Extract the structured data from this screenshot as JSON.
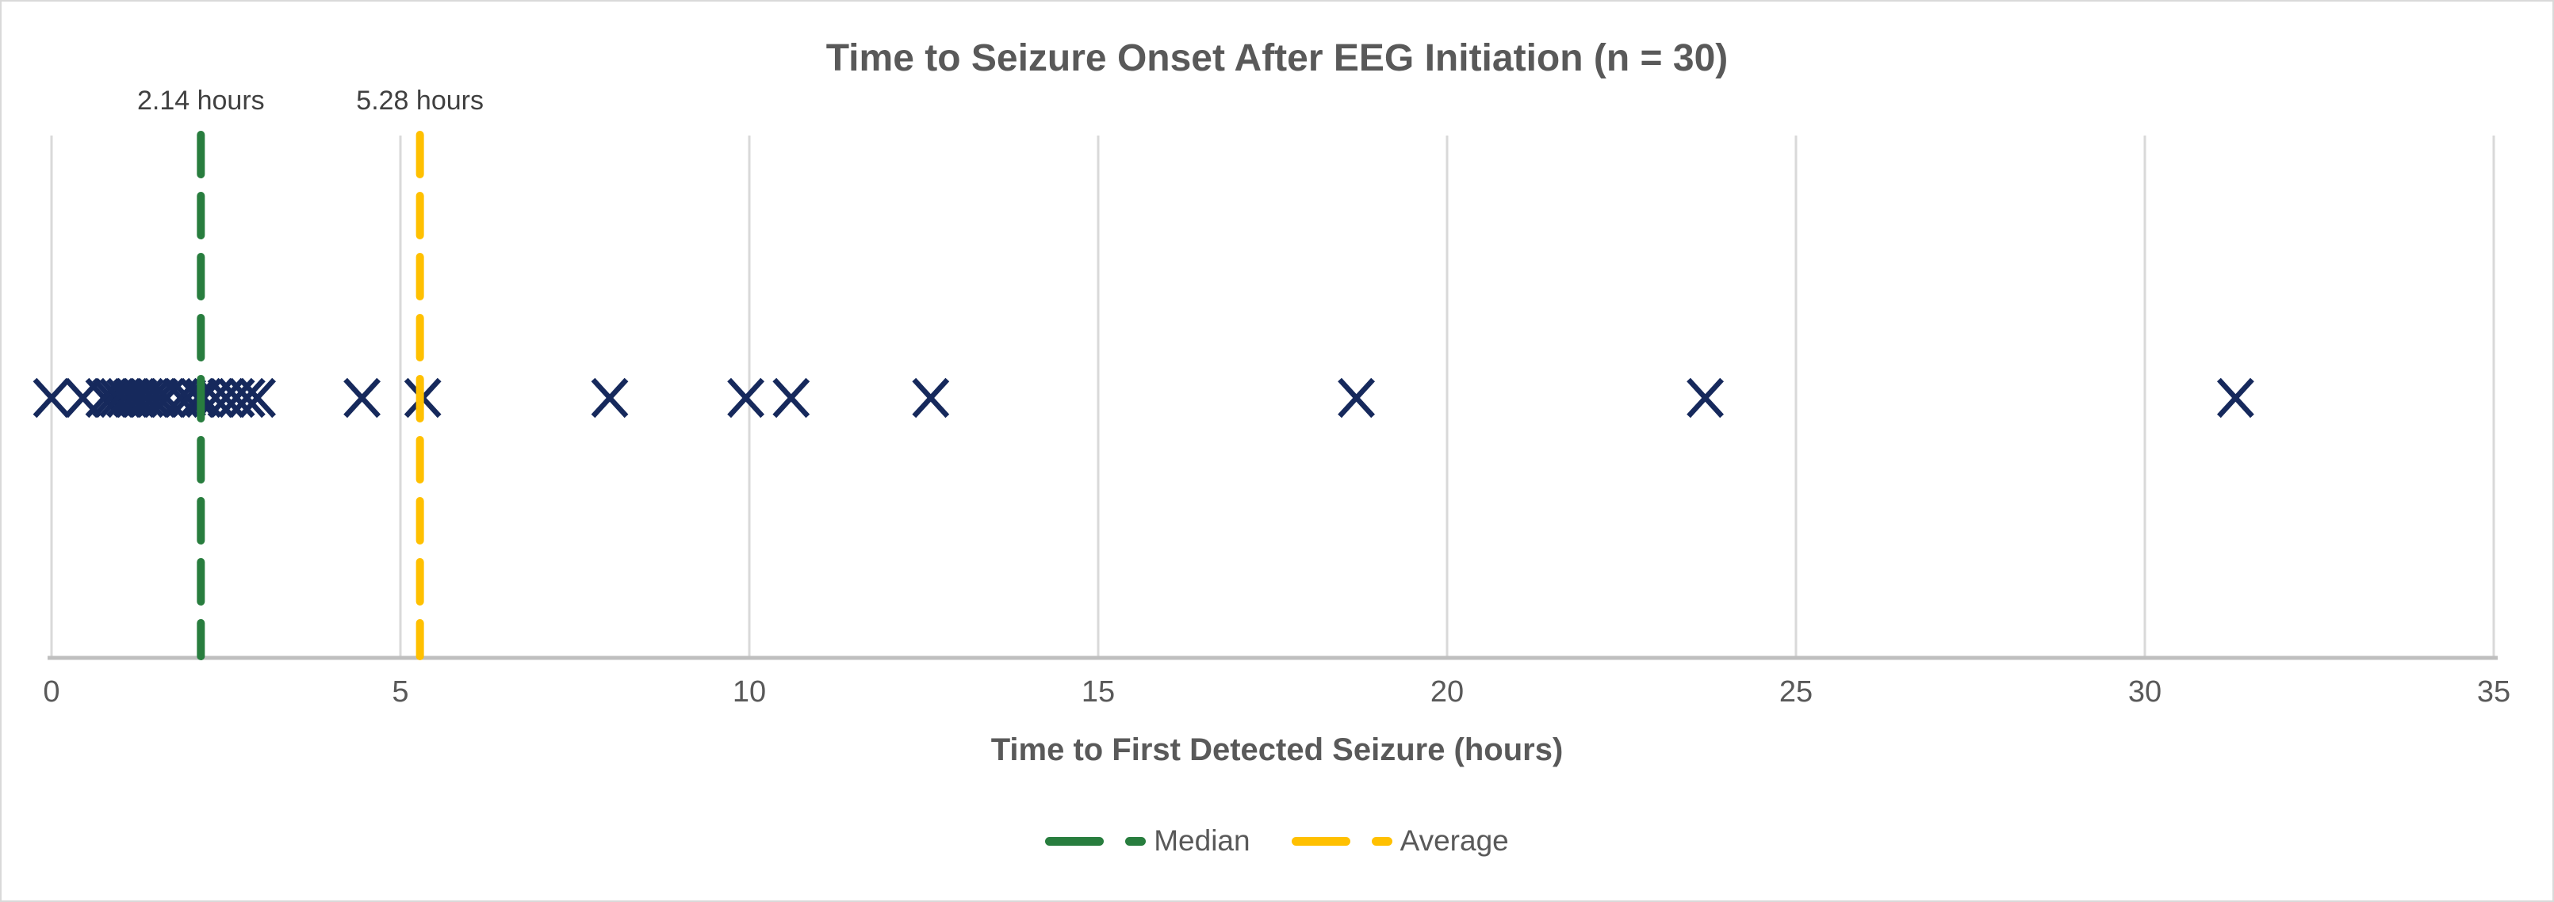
{
  "chart_data": {
    "type": "scatter",
    "title": "Time to Seizure Onset After EEG Initiation (n = 30)",
    "xlabel": "Time to First Detected Seizure (hours)",
    "xlim": [
      0,
      35
    ],
    "x_ticks": [
      0,
      5,
      10,
      15,
      20,
      25,
      30,
      35
    ],
    "grid": "vertical-gridlines-only",
    "legend_position": "bottom",
    "n": 30,
    "marker_symbol": "x",
    "points_hours": [
      0.0,
      0.45,
      0.75,
      0.85,
      0.95,
      1.05,
      1.15,
      1.25,
      1.35,
      1.45,
      1.55,
      1.65,
      1.85,
      1.95,
      2.1,
      2.18,
      2.35,
      2.5,
      2.65,
      2.8,
      2.95,
      4.45,
      5.32,
      8.0,
      9.95,
      10.6,
      12.6,
      18.7,
      23.7,
      31.3
    ],
    "reference_lines": [
      {
        "name": "Median",
        "value": 2.14,
        "annotation": "2.14 hours",
        "color": "#287D3E",
        "style": "dashed"
      },
      {
        "name": "Average",
        "value": 5.28,
        "annotation": "5.28 hours",
        "color": "#FFC000",
        "style": "dashed"
      }
    ],
    "colors": {
      "marker": "#16295C",
      "median_line": "#287D3E",
      "average_line": "#FFC000",
      "gridline": "#D9D9D9",
      "axis_line": "#BFBFBF",
      "text": "#595959",
      "annotation_text": "#404040"
    }
  }
}
